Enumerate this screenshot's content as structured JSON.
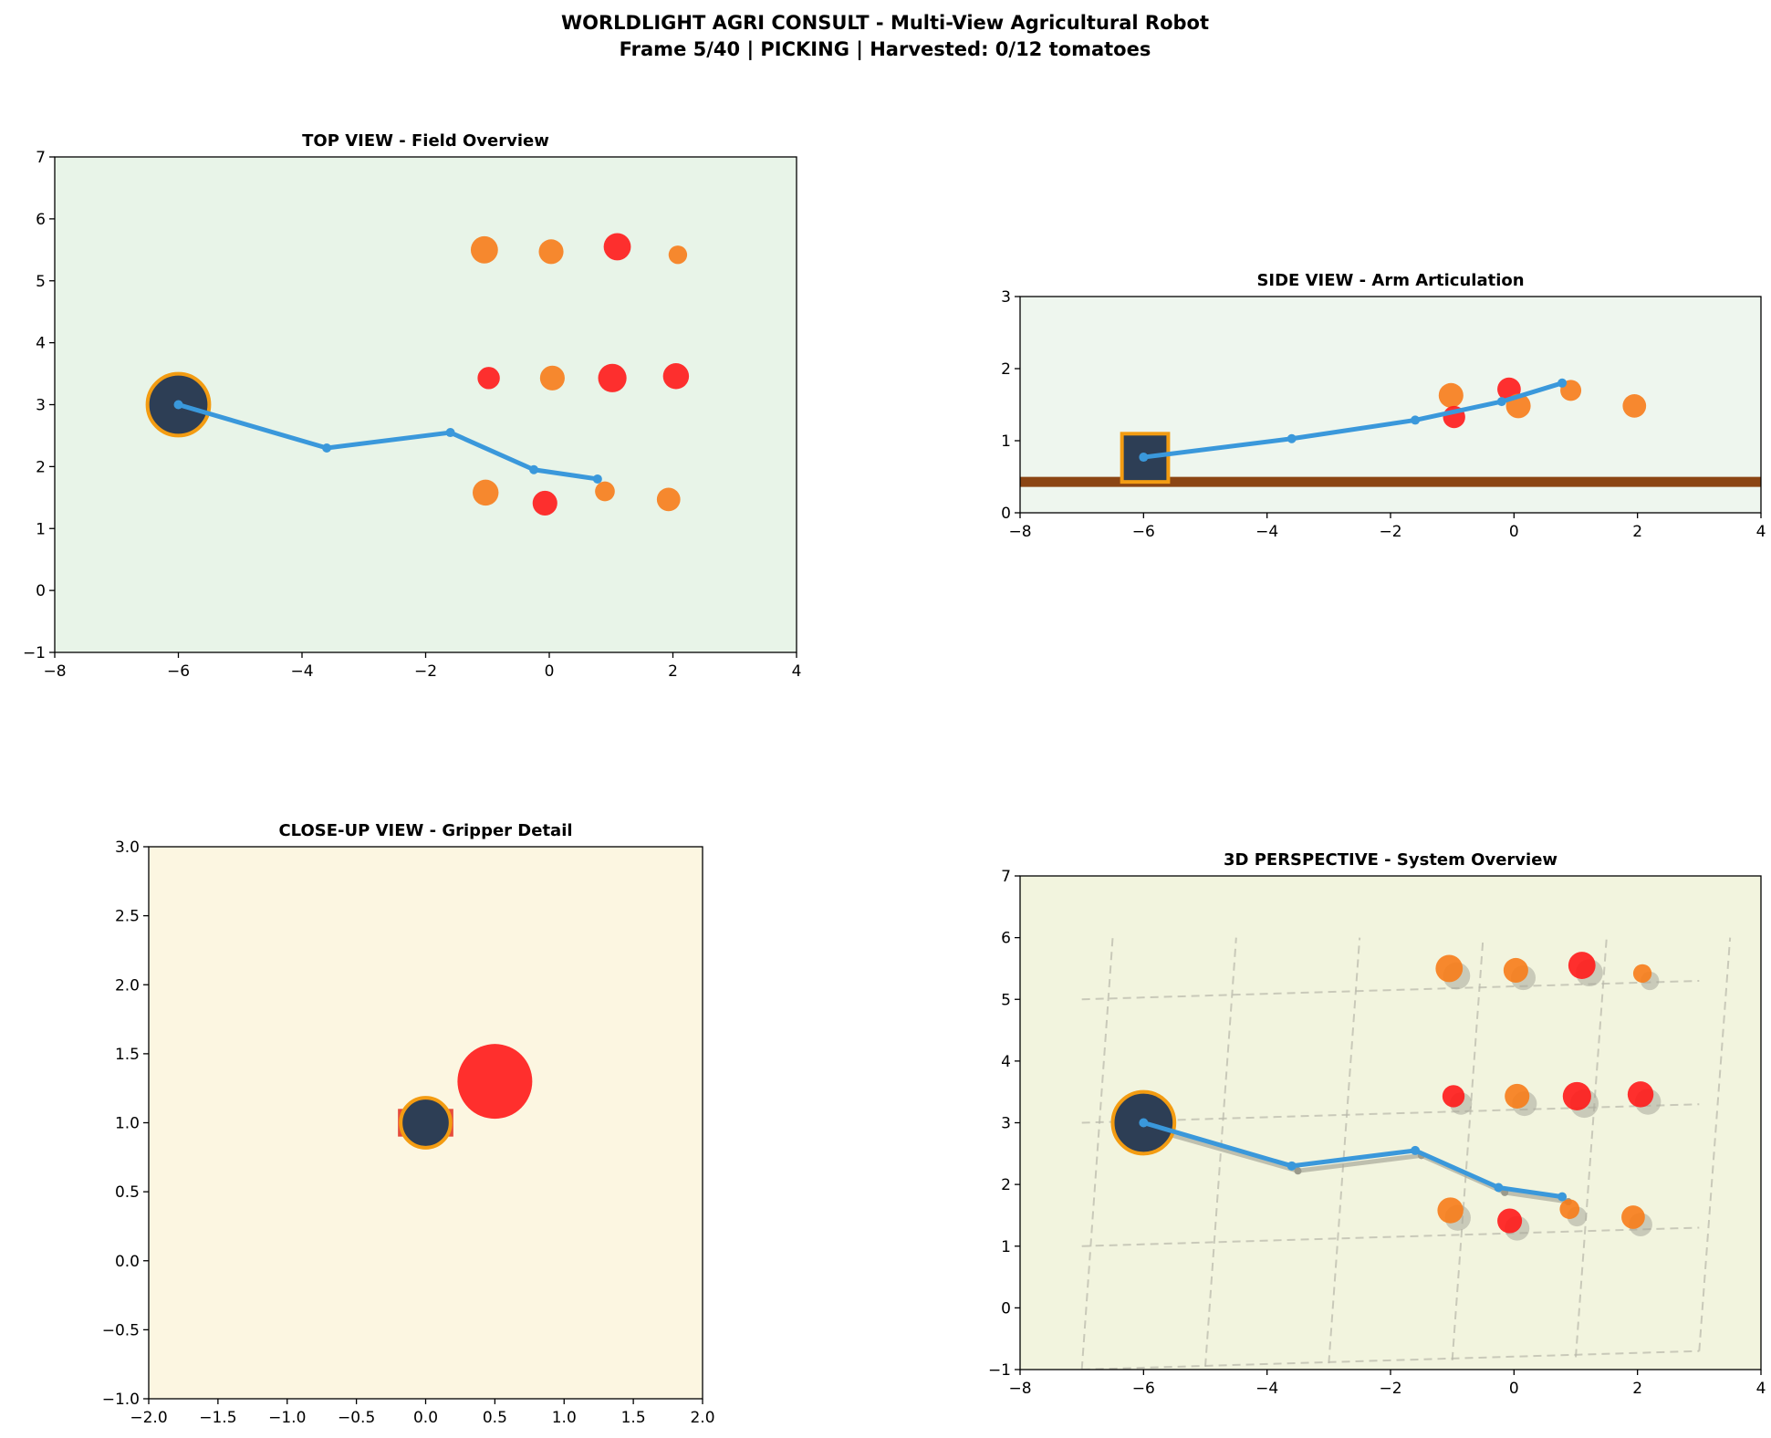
{
  "figure": {
    "title_line1": "WORLDLIGHT AGRI CONSULT - Multi-View Agricultural Robot",
    "title_line2": "Frame 5/40 | PICKING | Harvested: 0/12 tomatoes"
  },
  "colors": {
    "arm": "#3a98db",
    "robot_body": "#2d3e55",
    "robot_edge": "#f39c12",
    "ripe": "#ff1a1a",
    "unripe": "#f77c1a",
    "ground": "#8b4513",
    "shadow": "#a8a89a",
    "gripper": "#e74c3c"
  },
  "chart_data": [
    {
      "id": "top",
      "type": "scatter",
      "title": "TOP VIEW - Field Overview",
      "xlim": [
        -8,
        4
      ],
      "ylim": [
        -1,
        7
      ],
      "xticks": [
        "−8",
        "−6",
        "−4",
        "−2",
        "0",
        "2",
        "4"
      ],
      "yticks": [
        "−1",
        "0",
        "1",
        "2",
        "3",
        "4",
        "5",
        "6",
        "7"
      ],
      "background": "#e8f4e8",
      "robot": {
        "shape": "circle",
        "x": -6,
        "y": 3,
        "r": 0.5
      },
      "arm": [
        [
          -6,
          3
        ],
        [
          -3.6,
          2.3
        ],
        [
          -1.6,
          2.55
        ],
        [
          -0.25,
          1.95
        ],
        [
          0.78,
          1.8
        ]
      ],
      "tomatoes": [
        {
          "x": -1.05,
          "y": 5.5,
          "r": 0.22,
          "ripe": false
        },
        {
          "x": 0.03,
          "y": 5.47,
          "r": 0.2,
          "ripe": false
        },
        {
          "x": 1.1,
          "y": 5.55,
          "r": 0.22,
          "ripe": true
        },
        {
          "x": 2.08,
          "y": 5.42,
          "r": 0.15,
          "ripe": false
        },
        {
          "x": -0.98,
          "y": 3.43,
          "r": 0.18,
          "ripe": true
        },
        {
          "x": 0.05,
          "y": 3.43,
          "r": 0.2,
          "ripe": false
        },
        {
          "x": 1.02,
          "y": 3.43,
          "r": 0.23,
          "ripe": true
        },
        {
          "x": 2.05,
          "y": 3.46,
          "r": 0.21,
          "ripe": true
        },
        {
          "x": -1.03,
          "y": 1.58,
          "r": 0.21,
          "ripe": false
        },
        {
          "x": -0.07,
          "y": 1.41,
          "r": 0.2,
          "ripe": true
        },
        {
          "x": 0.9,
          "y": 1.6,
          "r": 0.16,
          "ripe": false
        },
        {
          "x": 1.93,
          "y": 1.47,
          "r": 0.19,
          "ripe": false
        }
      ]
    },
    {
      "id": "side",
      "type": "scatter",
      "title": "SIDE VIEW - Arm Articulation",
      "xlim": [
        -8,
        4
      ],
      "ylim": [
        -0.5,
        3
      ],
      "xticks": [
        "−8",
        "−6",
        "−4",
        "−2",
        "0",
        "2",
        "4"
      ],
      "yticks": [
        "0",
        "1",
        "2",
        "3"
      ],
      "background": "#eef6ee",
      "ground_y": 0,
      "robot": {
        "shape": "square",
        "x0": -6.35,
        "y0": 0,
        "x1": -5.6,
        "y1": 0.78
      },
      "arm": [
        [
          -6,
          0.4
        ],
        [
          -3.6,
          0.7
        ],
        [
          -1.6,
          1.0
        ],
        [
          -0.2,
          1.3
        ],
        [
          0.78,
          1.6
        ]
      ],
      "tomatoes": [
        {
          "x": -1.02,
          "y": 1.4,
          "r": 0.2,
          "ripe": false
        },
        {
          "x": -0.97,
          "y": 1.05,
          "r": 0.18,
          "ripe": true
        },
        {
          "x": -0.08,
          "y": 1.5,
          "r": 0.19,
          "ripe": true
        },
        {
          "x": 0.07,
          "y": 1.23,
          "r": 0.2,
          "ripe": false
        },
        {
          "x": 0.92,
          "y": 1.48,
          "r": 0.17,
          "ripe": false
        },
        {
          "x": 1.95,
          "y": 1.23,
          "r": 0.19,
          "ripe": false
        }
      ]
    },
    {
      "id": "close",
      "type": "scatter",
      "title": "CLOSE-UP VIEW - Gripper Detail",
      "xlim": [
        -2,
        2
      ],
      "ylim": [
        -1,
        3
      ],
      "xticks": [
        "−2.0",
        "−1.5",
        "−1.0",
        "−0.5",
        "0.0",
        "0.5",
        "1.0",
        "1.5",
        "2.0"
      ],
      "yticks": [
        "−1.0",
        "−0.5",
        "0.0",
        "0.5",
        "1.0",
        "1.5",
        "2.0",
        "2.5",
        "3.0"
      ],
      "background": "#fcf6e1",
      "gripper": {
        "x": 0,
        "y": 1.0,
        "r": 0.18
      },
      "tomatoes": [
        {
          "x": 0.5,
          "y": 1.3,
          "r": 0.27,
          "ripe": true
        }
      ]
    },
    {
      "id": "persp",
      "type": "scatter",
      "title": "3D PERSPECTIVE - System Overview",
      "xlim": [
        -8,
        4
      ],
      "ylim": [
        -1,
        7
      ],
      "xticks": [
        "−8",
        "−6",
        "−4",
        "−2",
        "0",
        "2",
        "4"
      ],
      "yticks": [
        "−1",
        "0",
        "1",
        "2",
        "3",
        "4",
        "5",
        "6",
        "7"
      ],
      "background": "#f2f4de",
      "grid_horizontal": [
        [
          [
            -7,
            -1
          ],
          [
            3,
            -0.7
          ]
        ],
        [
          [
            -7,
            1
          ],
          [
            3,
            1.3
          ]
        ],
        [
          [
            -7,
            3
          ],
          [
            3,
            3.3
          ]
        ],
        [
          [
            -7,
            5
          ],
          [
            3,
            5.3
          ]
        ]
      ],
      "grid_vertical": [
        [
          [
            -7,
            -1
          ],
          [
            -6.5,
            6
          ]
        ],
        [
          [
            -5,
            -0.95
          ],
          [
            -4.5,
            6
          ]
        ],
        [
          [
            -3,
            -0.9
          ],
          [
            -2.5,
            6
          ]
        ],
        [
          [
            -1,
            -0.85
          ],
          [
            -0.5,
            6
          ]
        ],
        [
          [
            1,
            -0.8
          ],
          [
            1.5,
            6
          ]
        ],
        [
          [
            3,
            -0.7
          ],
          [
            3.5,
            6
          ]
        ]
      ],
      "robot": {
        "shape": "circle",
        "x": -6,
        "y": 3,
        "r": 0.5
      },
      "arm": [
        [
          -6,
          3
        ],
        [
          -3.6,
          2.3
        ],
        [
          -1.6,
          2.55
        ],
        [
          -0.25,
          1.95
        ],
        [
          0.78,
          1.8
        ]
      ],
      "arm_shadow": [
        [
          -5.9,
          2.9
        ],
        [
          -3.5,
          2.22
        ],
        [
          -1.5,
          2.47
        ],
        [
          -0.15,
          1.87
        ],
        [
          0.88,
          1.72
        ]
      ],
      "tomatoes": [
        {
          "x": -1.05,
          "y": 5.5,
          "r": 0.22,
          "ripe": false
        },
        {
          "x": 0.03,
          "y": 5.47,
          "r": 0.2,
          "ripe": false
        },
        {
          "x": 1.1,
          "y": 5.55,
          "r": 0.22,
          "ripe": true
        },
        {
          "x": 2.08,
          "y": 5.42,
          "r": 0.15,
          "ripe": false
        },
        {
          "x": -0.98,
          "y": 3.43,
          "r": 0.18,
          "ripe": true
        },
        {
          "x": 0.05,
          "y": 3.43,
          "r": 0.2,
          "ripe": false
        },
        {
          "x": 1.02,
          "y": 3.43,
          "r": 0.23,
          "ripe": true
        },
        {
          "x": 2.05,
          "y": 3.46,
          "r": 0.21,
          "ripe": true
        },
        {
          "x": -1.03,
          "y": 1.58,
          "r": 0.21,
          "ripe": false
        },
        {
          "x": -0.07,
          "y": 1.41,
          "r": 0.2,
          "ripe": true
        },
        {
          "x": 0.9,
          "y": 1.6,
          "r": 0.16,
          "ripe": false
        },
        {
          "x": 1.93,
          "y": 1.47,
          "r": 0.19,
          "ripe": false
        }
      ],
      "shadow_offset": [
        0.12,
        -0.12
      ]
    }
  ]
}
